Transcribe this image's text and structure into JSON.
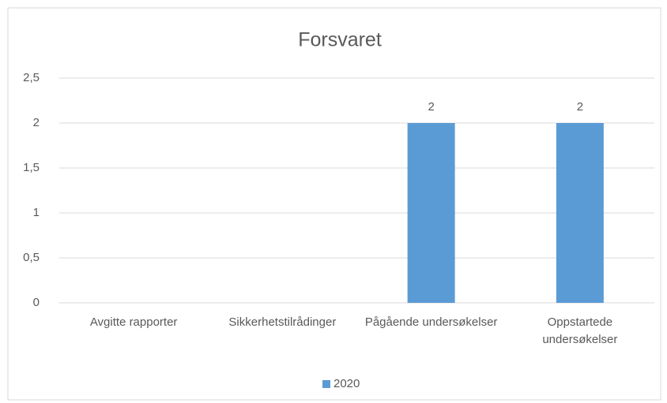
{
  "chart_data": {
    "type": "bar",
    "title": "Forsvaret",
    "categories": [
      "Avgitte rapporter",
      "Sikkerhetstilrådinger",
      "Pågående undersøkelser",
      "Oppstartede undersøkelser"
    ],
    "series": [
      {
        "name": "2020",
        "color": "#5b9bd5",
        "values": [
          null,
          null,
          2,
          2
        ]
      }
    ],
    "ylim": [
      0,
      2.5
    ],
    "yticks": [
      0,
      {
        "value": 0.5,
        "label": "0,5"
      },
      1,
      {
        "value": 1.5,
        "label": "1,5"
      },
      2,
      {
        "value": 2.5,
        "label": "2,5"
      }
    ],
    "grid": true,
    "legend": "bottom"
  }
}
